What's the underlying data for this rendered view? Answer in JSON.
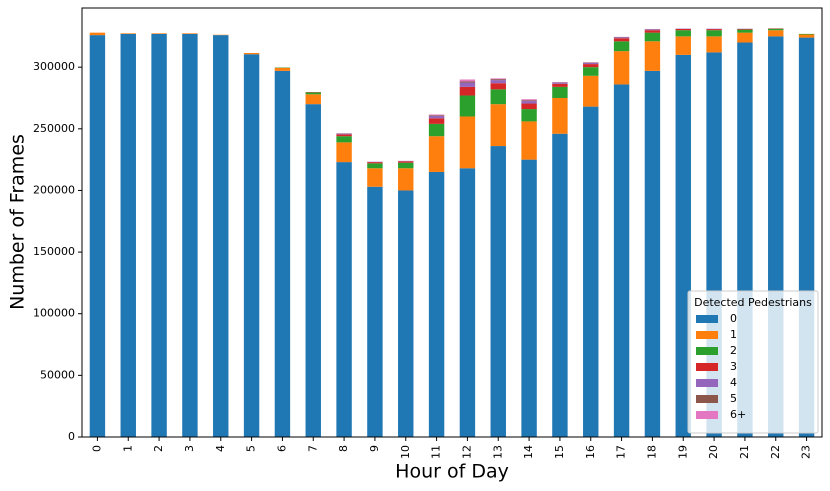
{
  "chart_data": {
    "type": "stacked_bar",
    "x_label": "Hour of Day",
    "y_label": "Number of Frames",
    "categories": [
      "0",
      "1",
      "2",
      "3",
      "4",
      "5",
      "6",
      "7",
      "8",
      "9",
      "10",
      "11",
      "12",
      "13",
      "14",
      "15",
      "16",
      "17",
      "18",
      "19",
      "20",
      "21",
      "22",
      "23"
    ],
    "ylim": [
      0,
      348000
    ],
    "yticks": [
      0,
      50000,
      100000,
      150000,
      200000,
      250000,
      300000
    ],
    "legend_title": "Detected Pedestrians",
    "legend_position": "lower right",
    "series": [
      {
        "name": "0",
        "color": "#1f77b4",
        "values": [
          326000,
          327000,
          327000,
          327000,
          326000,
          310500,
          297000,
          270000,
          223000,
          203000,
          200000,
          215000,
          218000,
          236000,
          225000,
          246000,
          268000,
          286000,
          297000,
          310000,
          312000,
          320000,
          325000,
          324000
        ]
      },
      {
        "name": "1",
        "color": "#ff7f0e",
        "values": [
          2000,
          500,
          500,
          500,
          300,
          1000,
          2500,
          8000,
          16000,
          15000,
          18000,
          29000,
          42000,
          34000,
          31000,
          29000,
          25000,
          27000,
          24000,
          15000,
          13000,
          8000,
          5000,
          2500
        ]
      },
      {
        "name": "2",
        "color": "#2ca02c",
        "values": [
          0,
          0,
          0,
          0,
          0,
          0,
          300,
          1500,
          5000,
          4000,
          4500,
          10000,
          17000,
          12000,
          10000,
          9000,
          7000,
          8000,
          7000,
          5000,
          5000,
          2500,
          1200,
          500
        ]
      },
      {
        "name": "3",
        "color": "#d62728",
        "values": [
          0,
          0,
          0,
          0,
          0,
          0,
          0,
          300,
          1500,
          1000,
          1200,
          4500,
          7000,
          5000,
          4500,
          2500,
          2500,
          2500,
          2000,
          1000,
          900,
          500,
          300,
          0
        ]
      },
      {
        "name": "4",
        "color": "#9467bd",
        "values": [
          0,
          0,
          0,
          0,
          0,
          0,
          0,
          0,
          600,
          300,
          300,
          2000,
          3500,
          2500,
          2000,
          1000,
          1000,
          800,
          700,
          300,
          300,
          200,
          0,
          0
        ]
      },
      {
        "name": "5",
        "color": "#8c564b",
        "values": [
          0,
          0,
          0,
          0,
          0,
          0,
          0,
          0,
          200,
          0,
          0,
          600,
          1000,
          800,
          700,
          300,
          300,
          200,
          200,
          0,
          0,
          0,
          0,
          0
        ]
      },
      {
        "name": "6+",
        "color": "#e377c2",
        "values": [
          0,
          0,
          0,
          0,
          0,
          0,
          0,
          0,
          100,
          0,
          0,
          500,
          1500,
          600,
          800,
          200,
          200,
          100,
          100,
          0,
          0,
          0,
          0,
          0
        ]
      }
    ]
  }
}
